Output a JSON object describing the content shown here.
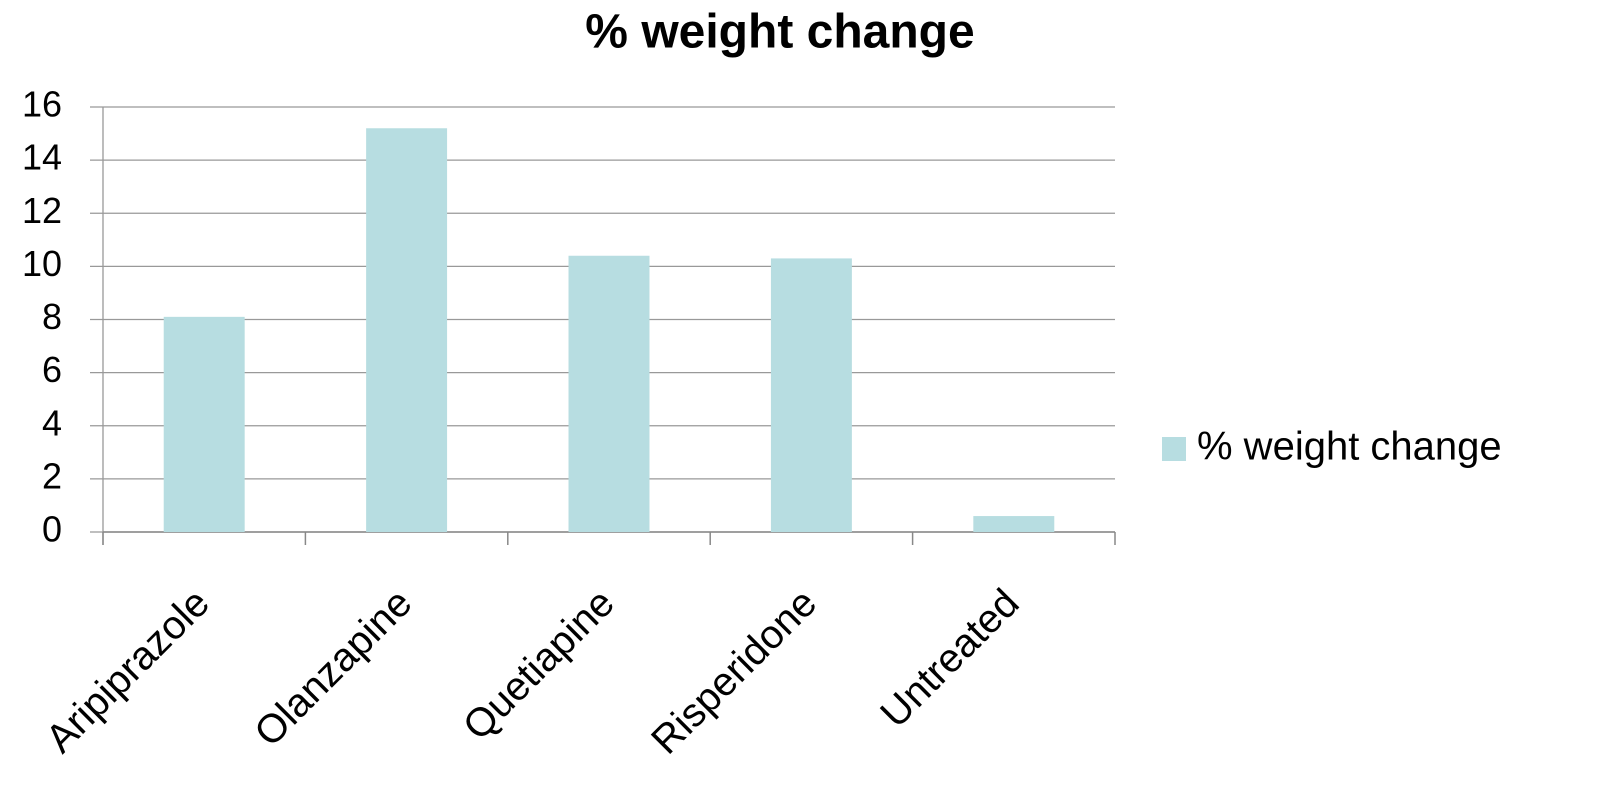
{
  "chart_data": {
    "type": "bar",
    "title": "% weight change",
    "categories": [
      "Aripiprazole",
      "Olanzapine",
      "Quetiapine",
      "Risperidone",
      "Untreated"
    ],
    "series": [
      {
        "name": "% weight change",
        "color": "#b7dde1",
        "values": [
          8.1,
          15.2,
          10.4,
          10.3,
          0.6
        ]
      }
    ],
    "ylim": [
      0,
      16
    ],
    "yticks": [
      0,
      2,
      4,
      6,
      8,
      10,
      12,
      14,
      16
    ],
    "grid": true,
    "legend": "right"
  }
}
